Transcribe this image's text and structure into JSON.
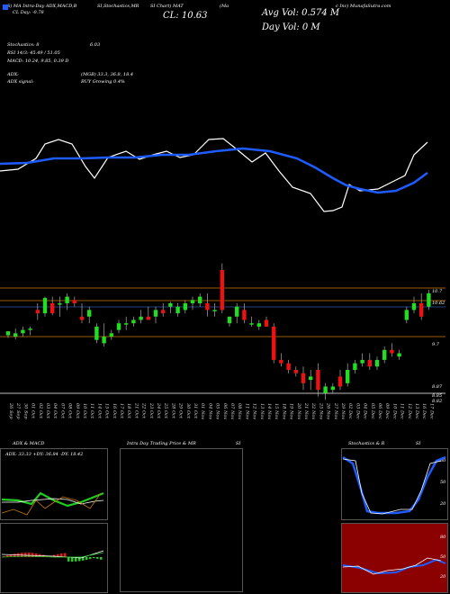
{
  "header": {
    "line1_left": "(S) MA Intra-Day ADX,MACD,B",
    "line1_mid1": "SI,Stochastics,MR",
    "line1_mid2": "SI Chart) MAT",
    "line1_mid3": "(Ma",
    "line1_right": "c Inc) MunafaSutra.com",
    "line2_left": "CL Day: -0.78",
    "avg_vol": "Avg Vol: 0.574  M",
    "day_vol": "Day Vol: 0  M",
    "close": "CL: 10.63"
  },
  "indicators": {
    "stoch": "Stochastics: 8",
    "stoch_val": "6.03",
    "rsi": "RSI 14/3: 45.49 / 51.05",
    "macd": "MACD: 10.24,  9.85,  0.39 D",
    "adx": "ADX:",
    "adx_vals": "(MGB) 33.3,  36.8,  18.4",
    "adx_signal": "ADX  signal:",
    "buy": "BUY Growing 0.4%"
  },
  "price_labels": [
    "10.7",
    "10.62",
    "9.7",
    "8.87",
    "8.85",
    "8.82"
  ],
  "dates": [
    "26 Sep",
    "27 Sep",
    "30 Sep",
    "01 Oct",
    "02 Oct",
    "03 Oct",
    "04 Oct",
    "07 Oct",
    "08 Oct",
    "09 Oct",
    "10 Oct",
    "11 Oct",
    "14 Oct",
    "15 Oct",
    "16 Oct",
    "17 Oct",
    "18 Oct",
    "21 Oct",
    "22 Oct",
    "23 Oct",
    "24 Oct",
    "25 Oct",
    "28 Oct",
    "29 Oct",
    "30 Oct",
    "31 Oct",
    "01 Nov",
    "04 Nov",
    "05 Nov",
    "06 Nov",
    "07 Nov",
    "08 Nov",
    "11 Nov",
    "12 Nov",
    "13 Nov",
    "14 Nov",
    "15 Nov",
    "18 Nov",
    "19 Nov",
    "20 Nov",
    "21 Nov",
    "22 Nov",
    "25 Nov",
    "26 Nov",
    "27 Nov",
    "29 Nov",
    "02 Dec",
    "03 Dec",
    "04 Dec",
    "05 Dec",
    "06 Dec",
    "09 Dec",
    "10 Dec",
    "11 Dec",
    "12 Dec",
    "13 Dec",
    "16 Dec",
    "17 Dec"
  ],
  "panels": {
    "adx_title": "ADX  & MACD",
    "adx_values": "ADX: 33.33  +DY: 36.84  -DY: 18.42",
    "intra_title": "Intra  Day Trading Price  & MR",
    "intra_si": "SI",
    "stoch_title": "Stochastics & R",
    "stoch_si": "SI",
    "stoch_ticks": [
      "80",
      "50",
      "20"
    ],
    "rsi_ticks": [
      "80",
      "50",
      "20"
    ]
  },
  "chart_data": {
    "type": "candlestick",
    "ylim": [
      8.8,
      10.8
    ],
    "ohlc": [
      [
        9.82,
        9.88,
        9.78,
        9.88
      ],
      [
        9.8,
        9.92,
        9.76,
        9.85
      ],
      [
        9.85,
        9.95,
        9.8,
        9.9
      ],
      [
        9.9,
        9.95,
        9.82,
        9.92
      ],
      [
        10.2,
        10.3,
        10.05,
        10.15
      ],
      [
        10.15,
        10.4,
        10.1,
        10.38
      ],
      [
        10.3,
        10.4,
        10.12,
        10.15
      ],
      [
        10.3,
        10.4,
        10.1,
        10.3
      ],
      [
        10.3,
        10.45,
        10.2,
        10.4
      ],
      [
        10.35,
        10.4,
        10.25,
        10.3
      ],
      [
        10.1,
        10.3,
        10.0,
        10.05
      ],
      [
        10.1,
        10.25,
        10.0,
        10.2
      ],
      [
        9.75,
        10.0,
        9.7,
        9.95
      ],
      [
        9.7,
        10.0,
        9.65,
        9.8
      ],
      [
        9.8,
        9.9,
        9.75,
        9.85
      ],
      [
        9.9,
        10.05,
        9.85,
        10.0
      ],
      [
        10.0,
        10.1,
        9.9,
        10.0
      ],
      [
        10.0,
        10.1,
        9.95,
        10.05
      ],
      [
        10.05,
        10.2,
        10.0,
        10.1
      ],
      [
        10.1,
        10.25,
        10.05,
        10.05
      ],
      [
        10.1,
        10.25,
        10.0,
        10.2
      ],
      [
        10.2,
        10.3,
        10.1,
        10.15
      ],
      [
        10.25,
        10.32,
        10.15,
        10.3
      ],
      [
        10.15,
        10.3,
        10.1,
        10.25
      ],
      [
        10.2,
        10.35,
        10.15,
        10.3
      ],
      [
        10.3,
        10.4,
        10.2,
        10.35
      ],
      [
        10.3,
        10.45,
        10.25,
        10.4
      ],
      [
        10.3,
        10.45,
        10.1,
        10.2
      ],
      [
        10.2,
        10.3,
        10.1,
        10.2
      ],
      [
        10.8,
        10.9,
        10.15,
        10.2
      ],
      [
        10.0,
        10.1,
        9.95,
        10.1
      ],
      [
        10.1,
        10.3,
        10.0,
        10.25
      ],
      [
        10.2,
        10.3,
        10.0,
        10.05
      ],
      [
        10.0,
        10.1,
        9.95,
        10.0
      ],
      [
        9.95,
        10.05,
        9.9,
        10.0
      ],
      [
        10.05,
        10.1,
        9.95,
        9.95
      ],
      [
        9.95,
        10.0,
        9.4,
        9.45
      ],
      [
        9.45,
        9.55,
        9.35,
        9.4
      ],
      [
        9.4,
        9.45,
        9.25,
        9.3
      ],
      [
        9.3,
        9.35,
        9.2,
        9.25
      ],
      [
        9.25,
        9.35,
        9.0,
        9.1
      ],
      [
        9.15,
        9.3,
        9.0,
        9.2
      ],
      [
        9.3,
        9.4,
        8.9,
        9.0
      ],
      [
        8.95,
        9.1,
        8.85,
        9.05
      ],
      [
        9.0,
        9.1,
        8.95,
        9.05
      ],
      [
        9.2,
        9.3,
        9.0,
        9.05
      ],
      [
        9.1,
        9.4,
        9.05,
        9.3
      ],
      [
        9.3,
        9.45,
        9.25,
        9.4
      ],
      [
        9.4,
        9.55,
        9.35,
        9.45
      ],
      [
        9.45,
        9.55,
        9.3,
        9.35
      ],
      [
        9.35,
        9.5,
        9.3,
        9.45
      ],
      [
        9.45,
        9.65,
        9.4,
        9.6
      ],
      [
        9.6,
        9.7,
        9.5,
        9.55
      ],
      [
        9.5,
        9.6,
        9.45,
        9.55
      ],
      [
        10.05,
        10.25,
        10.0,
        10.2
      ],
      [
        10.2,
        10.4,
        10.15,
        10.3
      ],
      [
        10.3,
        10.45,
        10.05,
        10.1
      ],
      [
        10.25,
        10.5,
        10.2,
        10.45
      ]
    ]
  },
  "colors": {
    "up": "#22dd22",
    "down": "#ee1111",
    "ma": "#1e5cff",
    "price": "#ffffff",
    "orange": "#cc7a00"
  }
}
